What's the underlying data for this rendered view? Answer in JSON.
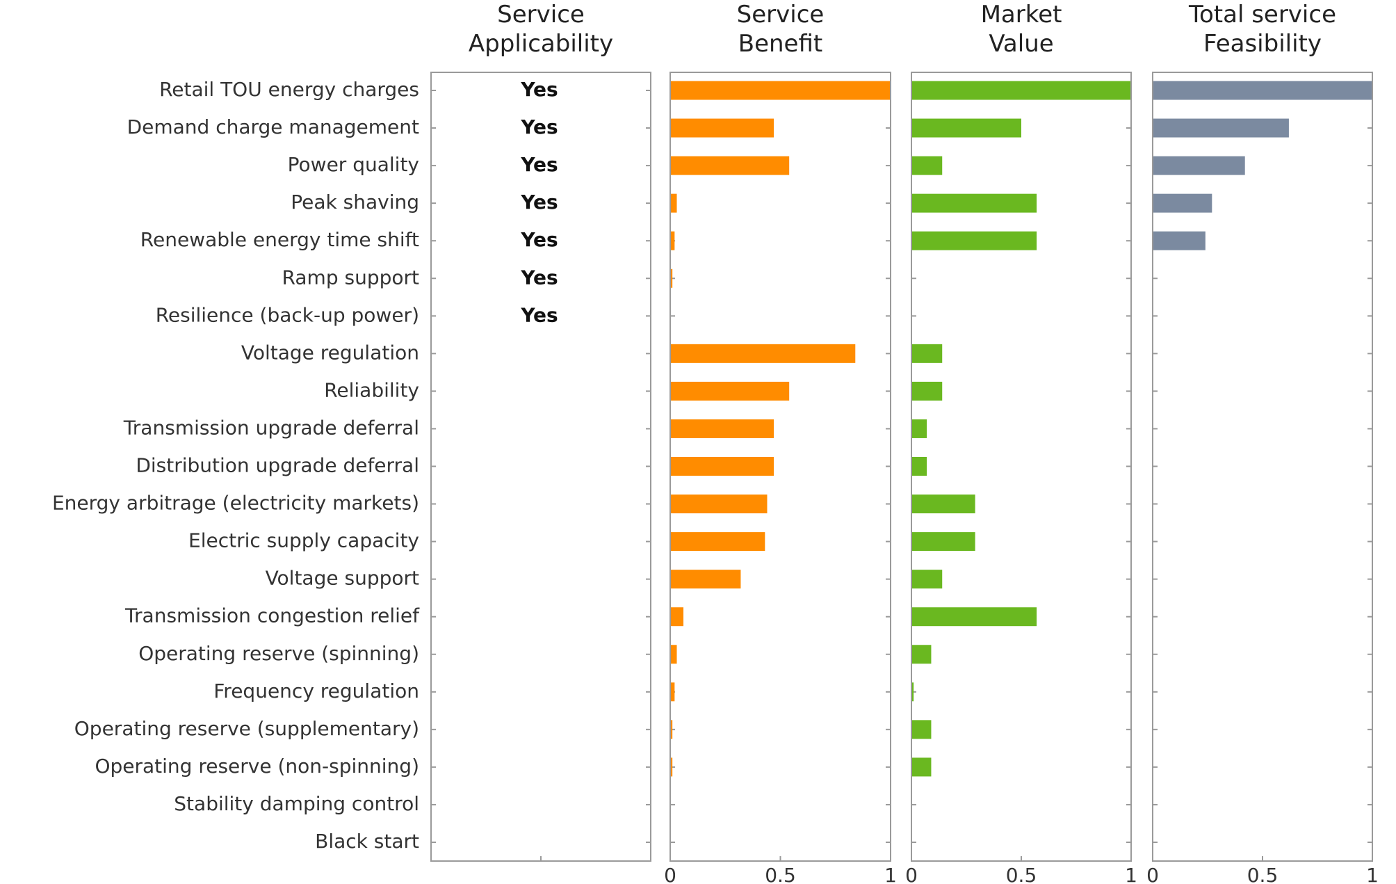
{
  "chart_data": {
    "type": "bar",
    "orientation": "horizontal",
    "categories": [
      "Retail TOU energy charges",
      "Demand charge management",
      "Power quality",
      "Peak shaving",
      "Renewable energy time shift",
      "Ramp support",
      "Resilience (back-up power)",
      "Voltage regulation",
      "Reliability",
      "Transmission upgrade deferral",
      "Distribution upgrade deferral",
      "Energy arbitrage (electricity markets)",
      "Electric supply capacity",
      "Voltage support",
      "Transmission congestion relief",
      "Operating reserve (spinning)",
      "Frequency regulation",
      "Operating reserve (supplementary)",
      "Operating reserve (non-spinning)",
      "Stability damping control",
      "Black start"
    ],
    "panels": [
      {
        "title_line1": "Service",
        "title_line2": "Applicability",
        "kind": "text",
        "labels": [
          "Yes",
          "Yes",
          "Yes",
          "Yes",
          "Yes",
          "Yes",
          "Yes",
          "",
          "",
          "",
          "",
          "",
          "",
          "",
          "",
          "",
          "",
          "",
          "",
          "",
          ""
        ]
      },
      {
        "title_line1": "Service",
        "title_line2": "Benefit",
        "kind": "bar",
        "color": "#ff8c00",
        "xlim": [
          0,
          1
        ],
        "ticks": [
          "0",
          "0.5",
          "1"
        ],
        "values": [
          1.0,
          0.47,
          0.54,
          0.03,
          0.02,
          0.01,
          0,
          0.84,
          0.54,
          0.47,
          0.47,
          0.44,
          0.43,
          0.32,
          0.06,
          0.03,
          0.02,
          0.01,
          0.01,
          0,
          0
        ]
      },
      {
        "title_line1": "Market",
        "title_line2": "Value",
        "kind": "bar",
        "color": "#6ab820",
        "xlim": [
          0,
          1
        ],
        "ticks": [
          "0",
          "0.5",
          "1"
        ],
        "values": [
          1.0,
          0.5,
          0.14,
          0.57,
          0.57,
          0,
          0,
          0.14,
          0.14,
          0.07,
          0.07,
          0.29,
          0.29,
          0.14,
          0.57,
          0.09,
          0.01,
          0.09,
          0.09,
          0,
          0
        ]
      },
      {
        "title_line1": "Total service",
        "title_line2": "Feasibility",
        "kind": "bar",
        "color": "#7b8aa0",
        "xlim": [
          0,
          1
        ],
        "ticks": [
          "0",
          "0.5",
          "1"
        ],
        "values": [
          1.0,
          0.62,
          0.42,
          0.27,
          0.24,
          0,
          0,
          0,
          0,
          0,
          0,
          0,
          0,
          0,
          0,
          0,
          0,
          0,
          0,
          0,
          0
        ]
      }
    ],
    "grid": false,
    "legend": "none"
  }
}
